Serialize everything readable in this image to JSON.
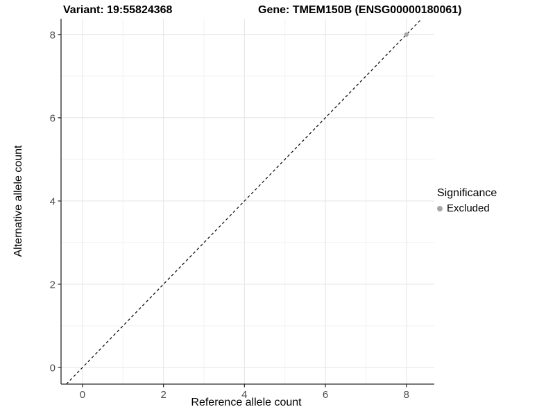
{
  "titles": {
    "variant": "Variant: 19:55824368",
    "gene": "Gene: TMEM150B (ENSG00000180061)"
  },
  "axes": {
    "x_label": "Reference allele count",
    "y_label": "Alternative allele count"
  },
  "legend": {
    "title": "Significance",
    "position": "right",
    "items": [
      {
        "label": "Excluded",
        "color": "#a6a6a6"
      }
    ]
  },
  "chart_data": {
    "type": "scatter",
    "title": "Variant: 19:55824368 | Gene: TMEM150B (ENSG00000180061)",
    "xlabel": "Reference allele count",
    "ylabel": "Alternative allele count",
    "xlim": [
      -0.53,
      8.69
    ],
    "ylim": [
      -0.4,
      8.38
    ],
    "x_ticks": [
      0,
      2,
      4,
      6,
      8
    ],
    "y_ticks": [
      0,
      2,
      4,
      6,
      8
    ],
    "x_minor_ticks": [
      1,
      3,
      5,
      7
    ],
    "y_minor_ticks": [
      1,
      3,
      5,
      7
    ],
    "grid": true,
    "legend_position": "right",
    "series": [
      {
        "name": "Excluded",
        "color": "#a6a6a6",
        "points": [
          [
            8,
            8
          ]
        ]
      }
    ],
    "reference_line": {
      "type": "identity",
      "slope": 1,
      "intercept": 0,
      "style": "dashed",
      "color": "#000000"
    }
  },
  "style": {
    "grid_major": "#e4e4e4",
    "grid_minor": "#f1f1f1",
    "axis_line": "#262626",
    "tick_text": "#4d4d4d",
    "dashed_line": "#000000"
  }
}
